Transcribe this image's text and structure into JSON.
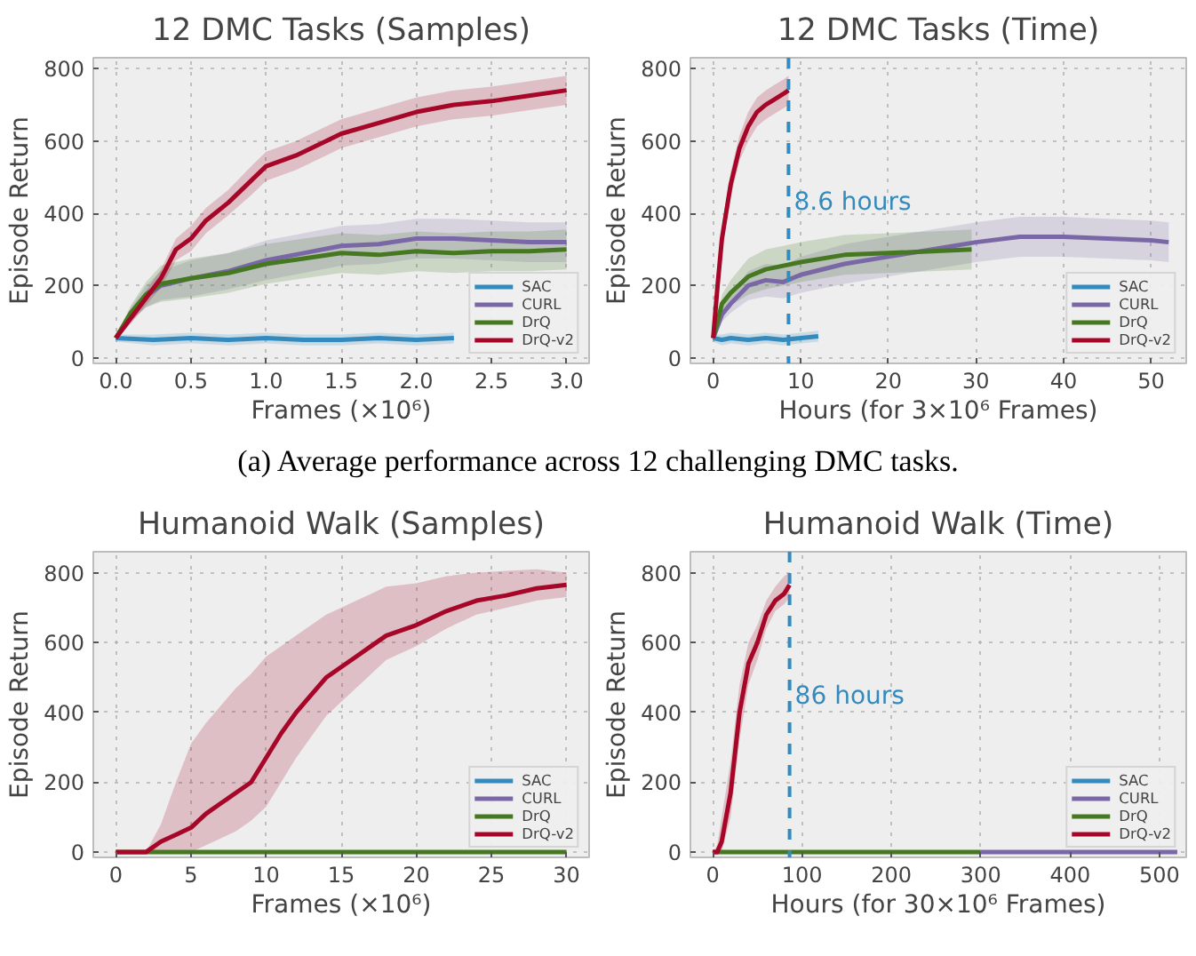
{
  "chart_data": [
    {
      "type": "line",
      "title": "12 DMC Tasks (Samples)",
      "xlabel": "Frames (×10⁶)",
      "ylabel": "Episode Return",
      "annotations": [
        "(a) Average performance across 12 challenging DMC tasks."
      ],
      "xlim": [
        -0.15,
        3.15
      ],
      "xticks": [
        {
          "value": 0,
          "label": "0.0"
        },
        {
          "value": 0.5,
          "label": "0.5"
        },
        {
          "value": 1,
          "label": "1.0"
        },
        {
          "value": 1.5,
          "label": "1.5"
        },
        {
          "value": 2,
          "label": "2.0"
        },
        {
          "value": 2.5,
          "label": "2.5"
        },
        {
          "value": 3,
          "label": "3.0"
        }
      ],
      "ylim": [
        -15,
        830
      ],
      "yticks": [
        0,
        200,
        400,
        600,
        800
      ],
      "grid": true,
      "legend": "bottom right",
      "line_style": "solid",
      "marker": "none",
      "series": [
        {
          "name": "SAC",
          "color": "#348abd",
          "x": [
            0,
            0.25,
            0.5,
            0.75,
            1,
            1.25,
            1.5,
            1.75,
            2,
            2.25
          ],
          "values": [
            55,
            50,
            55,
            50,
            55,
            50,
            50,
            55,
            50,
            55
          ],
          "lower": [
            45,
            35,
            40,
            35,
            40,
            35,
            35,
            40,
            35,
            40
          ],
          "upper": [
            65,
            65,
            70,
            65,
            70,
            65,
            65,
            70,
            65,
            70
          ]
        },
        {
          "name": "CURL",
          "color": "#7a68a6",
          "x": [
            0,
            0.1,
            0.2,
            0.3,
            0.5,
            0.75,
            1,
            1.25,
            1.5,
            1.75,
            2,
            2.25,
            2.5,
            2.75,
            3
          ],
          "values": [
            55,
            120,
            170,
            200,
            220,
            240,
            270,
            290,
            310,
            315,
            330,
            330,
            325,
            320,
            320
          ],
          "lower": [
            50,
            100,
            140,
            160,
            170,
            190,
            215,
            235,
            255,
            260,
            275,
            275,
            270,
            265,
            265
          ],
          "upper": [
            60,
            140,
            200,
            240,
            270,
            290,
            325,
            345,
            365,
            370,
            385,
            385,
            380,
            375,
            375
          ]
        },
        {
          "name": "DrQ",
          "color": "#467821",
          "x": [
            0,
            0.1,
            0.2,
            0.3,
            0.5,
            0.75,
            1,
            1.25,
            1.5,
            1.75,
            2,
            2.25,
            2.5,
            2.75,
            3
          ],
          "values": [
            55,
            125,
            175,
            205,
            220,
            235,
            260,
            275,
            290,
            285,
            295,
            290,
            295,
            295,
            300
          ],
          "lower": [
            50,
            105,
            140,
            155,
            165,
            180,
            205,
            220,
            235,
            230,
            240,
            235,
            240,
            240,
            245
          ],
          "upper": [
            60,
            145,
            210,
            255,
            275,
            290,
            315,
            330,
            345,
            340,
            350,
            345,
            350,
            350,
            355
          ]
        },
        {
          "name": "DrQ-v2",
          "color": "#a60628",
          "x": [
            0,
            0.1,
            0.2,
            0.3,
            0.4,
            0.5,
            0.6,
            0.75,
            0.9,
            1,
            1.2,
            1.4,
            1.5,
            1.75,
            2,
            2.25,
            2.5,
            2.75,
            3
          ],
          "values": [
            55,
            110,
            165,
            220,
            300,
            330,
            380,
            430,
            490,
            530,
            560,
            600,
            620,
            650,
            680,
            700,
            710,
            725,
            740
          ],
          "lower": [
            50,
            95,
            145,
            195,
            270,
            295,
            345,
            395,
            450,
            490,
            520,
            560,
            580,
            610,
            640,
            660,
            670,
            685,
            700
          ],
          "upper": [
            60,
            125,
            185,
            245,
            330,
            365,
            415,
            465,
            530,
            570,
            600,
            640,
            660,
            690,
            720,
            740,
            750,
            765,
            780
          ]
        }
      ]
    },
    {
      "type": "line",
      "title": "12 DMC Tasks (Time)",
      "xlabel": "Hours (for 3×10⁶ Frames)",
      "ylabel": "Episode Return",
      "xlim": [
        -2.6,
        54
      ],
      "xticks": [
        0,
        10,
        20,
        30,
        40,
        50
      ],
      "ylim": [
        -15,
        830
      ],
      "yticks": [
        0,
        200,
        400,
        600,
        800
      ],
      "grid": true,
      "legend": "bottom right",
      "line_style": "solid",
      "marker": "none",
      "ref_lines": [
        {
          "axis": "x",
          "value": 8.6,
          "label": "8.6 hours",
          "color": "#348abd",
          "line_style": "dashed"
        }
      ],
      "series": [
        {
          "name": "SAC",
          "color": "#348abd",
          "x": [
            0,
            1,
            2,
            4,
            6,
            8,
            10,
            12
          ],
          "values": [
            55,
            50,
            55,
            50,
            55,
            50,
            55,
            60
          ],
          "lower": [
            45,
            35,
            40,
            35,
            40,
            35,
            40,
            45
          ],
          "upper": [
            65,
            65,
            70,
            65,
            70,
            65,
            70,
            75
          ]
        },
        {
          "name": "CURL",
          "color": "#7a68a6",
          "x": [
            0,
            1,
            2,
            4,
            6,
            8,
            10,
            15,
            20,
            25,
            30,
            35,
            40,
            45,
            50,
            52
          ],
          "values": [
            55,
            120,
            150,
            200,
            215,
            210,
            230,
            260,
            280,
            300,
            320,
            335,
            335,
            330,
            325,
            320
          ],
          "lower": [
            50,
            100,
            125,
            160,
            170,
            165,
            180,
            205,
            225,
            245,
            265,
            280,
            280,
            275,
            270,
            265
          ],
          "upper": [
            60,
            140,
            175,
            240,
            260,
            255,
            280,
            315,
            335,
            355,
            375,
            390,
            390,
            385,
            380,
            375
          ]
        },
        {
          "name": "DrQ",
          "color": "#467821",
          "x": [
            0,
            1,
            2,
            4,
            6,
            8,
            10,
            15,
            20,
            25,
            29.5
          ],
          "values": [
            55,
            150,
            180,
            225,
            245,
            255,
            265,
            285,
            290,
            295,
            300
          ],
          "lower": [
            50,
            125,
            145,
            175,
            190,
            200,
            210,
            230,
            235,
            240,
            245
          ],
          "upper": [
            60,
            175,
            215,
            275,
            300,
            310,
            320,
            340,
            345,
            350,
            355
          ]
        },
        {
          "name": "DrQ-v2",
          "color": "#a60628",
          "x": [
            0,
            0.5,
            1,
            2,
            3,
            4,
            5,
            6,
            7,
            8,
            8.6
          ],
          "values": [
            55,
            200,
            330,
            480,
            580,
            640,
            680,
            700,
            715,
            730,
            740
          ],
          "lower": [
            50,
            180,
            300,
            445,
            545,
            600,
            640,
            660,
            675,
            690,
            700
          ],
          "upper": [
            60,
            220,
            360,
            515,
            615,
            680,
            720,
            740,
            755,
            770,
            780
          ]
        }
      ]
    },
    {
      "type": "line",
      "title": "Humanoid Walk (Samples)",
      "xlabel": "Frames (×10⁶)",
      "ylabel": "Episode Return",
      "xlim": [
        -1.5,
        31.5
      ],
      "xticks": [
        0,
        5,
        10,
        15,
        20,
        25,
        30
      ],
      "ylim": [
        -15,
        860
      ],
      "yticks": [
        0,
        200,
        400,
        600,
        800
      ],
      "grid": true,
      "legend": "bottom right",
      "line_style": "solid",
      "marker": "none",
      "series": [
        {
          "name": "SAC",
          "color": "#348abd"
        },
        {
          "name": "CURL",
          "color": "#7a68a6"
        },
        {
          "name": "DrQ",
          "color": "#467821",
          "x": [
            0,
            30
          ],
          "values": [
            0,
            0
          ]
        },
        {
          "name": "DrQ-v2",
          "color": "#a60628",
          "x": [
            0,
            2,
            3,
            4,
            5,
            6,
            7,
            8,
            9,
            10,
            11,
            12,
            13,
            14,
            15,
            16,
            17,
            18,
            20,
            22,
            24,
            26,
            28,
            30
          ],
          "values": [
            0,
            0,
            30,
            50,
            70,
            110,
            140,
            170,
            200,
            270,
            340,
            400,
            450,
            500,
            530,
            560,
            590,
            620,
            650,
            690,
            720,
            735,
            755,
            765
          ],
          "lower": [
            0,
            0,
            0,
            0,
            0,
            20,
            40,
            60,
            90,
            130,
            200,
            270,
            330,
            390,
            430,
            470,
            510,
            550,
            590,
            640,
            680,
            700,
            720,
            730
          ],
          "upper": [
            0,
            0,
            80,
            200,
            310,
            370,
            420,
            470,
            510,
            560,
            590,
            620,
            650,
            680,
            700,
            720,
            740,
            760,
            770,
            790,
            800,
            805,
            810,
            800
          ]
        }
      ]
    },
    {
      "type": "line",
      "title": "Humanoid Walk (Time)",
      "xlabel": "Hours (for 30×10⁶ Frames)",
      "ylabel": "Episode Return",
      "xlim": [
        -25,
        530
      ],
      "xticks": [
        0,
        100,
        200,
        300,
        400,
        500
      ],
      "ylim": [
        -15,
        860
      ],
      "yticks": [
        0,
        200,
        400,
        600,
        800
      ],
      "grid": true,
      "legend": "bottom right",
      "line_style": "solid",
      "marker": "none",
      "ref_lines": [
        {
          "axis": "x",
          "value": 86,
          "label": "86 hours",
          "color": "#348abd",
          "line_style": "dashed"
        }
      ],
      "series": [
        {
          "name": "SAC",
          "color": "#348abd"
        },
        {
          "name": "CURL",
          "color": "#7a68a6",
          "x": [
            300,
            520
          ],
          "values": [
            0,
            0
          ]
        },
        {
          "name": "DrQ",
          "color": "#467821",
          "x": [
            0,
            300
          ],
          "values": [
            0,
            0
          ]
        },
        {
          "name": "DrQ-v2",
          "color": "#a60628",
          "x": [
            0,
            5,
            10,
            20,
            30,
            40,
            50,
            60,
            70,
            80,
            86
          ],
          "values": [
            0,
            0,
            30,
            170,
            400,
            540,
            600,
            680,
            720,
            740,
            765
          ],
          "lower": [
            0,
            0,
            0,
            100,
            320,
            480,
            550,
            640,
            690,
            710,
            730
          ],
          "upper": [
            0,
            20,
            100,
            260,
            480,
            600,
            650,
            720,
            760,
            790,
            800
          ]
        }
      ]
    }
  ]
}
